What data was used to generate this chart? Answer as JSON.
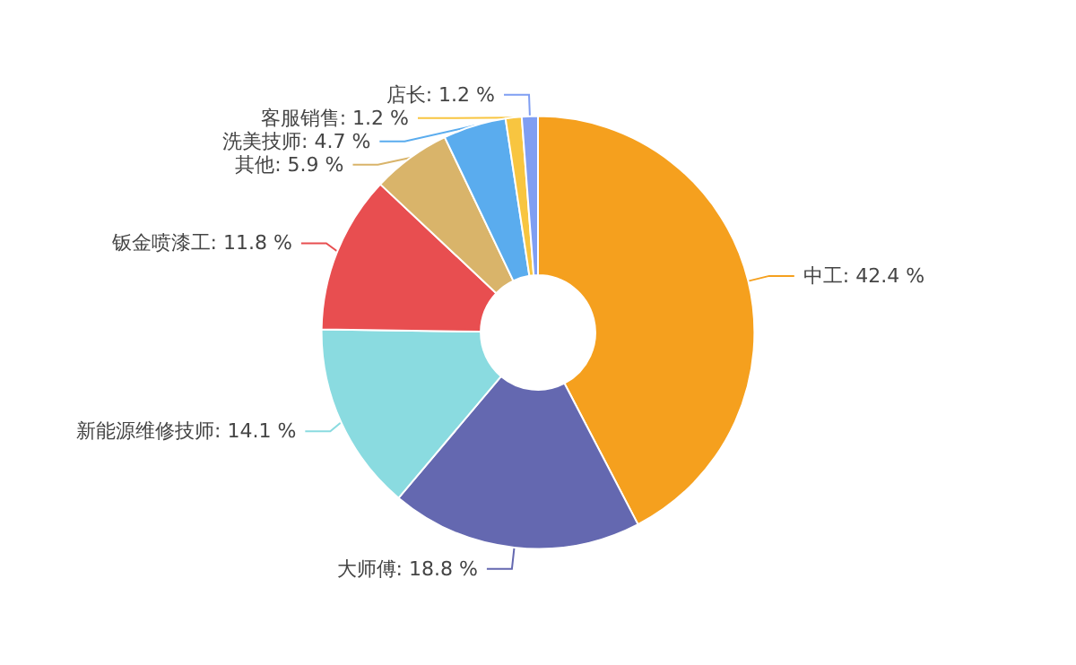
{
  "chart_data": {
    "type": "donut",
    "categories": [
      "中工",
      "大师傅",
      "新能源维修技师",
      "钣金喷漆工",
      "其他",
      "洗美技师",
      "客服销售",
      "店长"
    ],
    "values": [
      42.4,
      18.8,
      14.1,
      11.8,
      5.9,
      4.7,
      1.2,
      1.2
    ],
    "colors": [
      "#f5a01e",
      "#6468b0",
      "#8adbe0",
      "#e84e50",
      "#d9b46a",
      "#5aacee",
      "#f8c540",
      "#7f9ef2"
    ],
    "value_labels": [
      "42.4 %",
      "18.8 %",
      "14.1 %",
      "11.8 %",
      "5.9 %",
      "4.7 %",
      "1.2 %",
      "1.2 %"
    ],
    "legend": false
  }
}
